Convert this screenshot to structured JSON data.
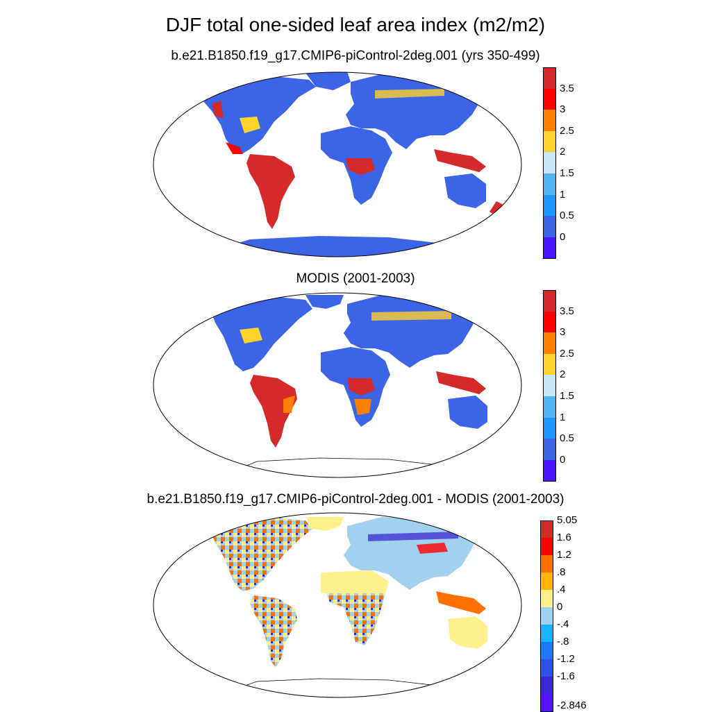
{
  "title": "DJF total one-sided leaf area index (m2/m2)",
  "panels": [
    {
      "id": "model",
      "subtitle": "b.e21.B1850.f19_g17.CMIP6-piControl-2deg.001 (yrs 350-499)",
      "colorbar": {
        "colors": [
          "#d42a2a",
          "#ff0000",
          "#ff8000",
          "#ffd22e",
          "#c8e6fa",
          "#50b4f0",
          "#1e96ff",
          "#3c64e6",
          "#4614ff"
        ],
        "labels": [
          "3.5",
          "3",
          "2.5",
          "2",
          "1.5",
          "1",
          "0.5",
          "0"
        ]
      }
    },
    {
      "id": "obs",
      "subtitle": "MODIS (2001-2003)",
      "colorbar": {
        "colors": [
          "#d42a2a",
          "#ff0000",
          "#ff8000",
          "#ffd22e",
          "#c8e6fa",
          "#50b4f0",
          "#1e96ff",
          "#3c64e6",
          "#4614ff"
        ],
        "labels": [
          "3.5",
          "3",
          "2.5",
          "2",
          "1.5",
          "1",
          "0.5",
          "0"
        ]
      }
    },
    {
      "id": "diff",
      "subtitle": "b.e21.B1850.f19_g17.CMIP6-piControl-2deg.001 - MODIS (2001-2003)",
      "colorbar": {
        "colors": [
          "#d42a2a",
          "#ff0000",
          "#ff7000",
          "#ffb400",
          "#fff08c",
          "#a0d2f0",
          "#14b4ff",
          "#1e78ff",
          "#2d50e6",
          "#3c28d2",
          "#5014ff"
        ],
        "labels": [
          "5.05",
          "1.6",
          "1.2",
          ".8",
          ".4",
          "0",
          "-.4",
          "-.8",
          "-1.2",
          "-1.6",
          "-2.846"
        ]
      }
    }
  ]
}
